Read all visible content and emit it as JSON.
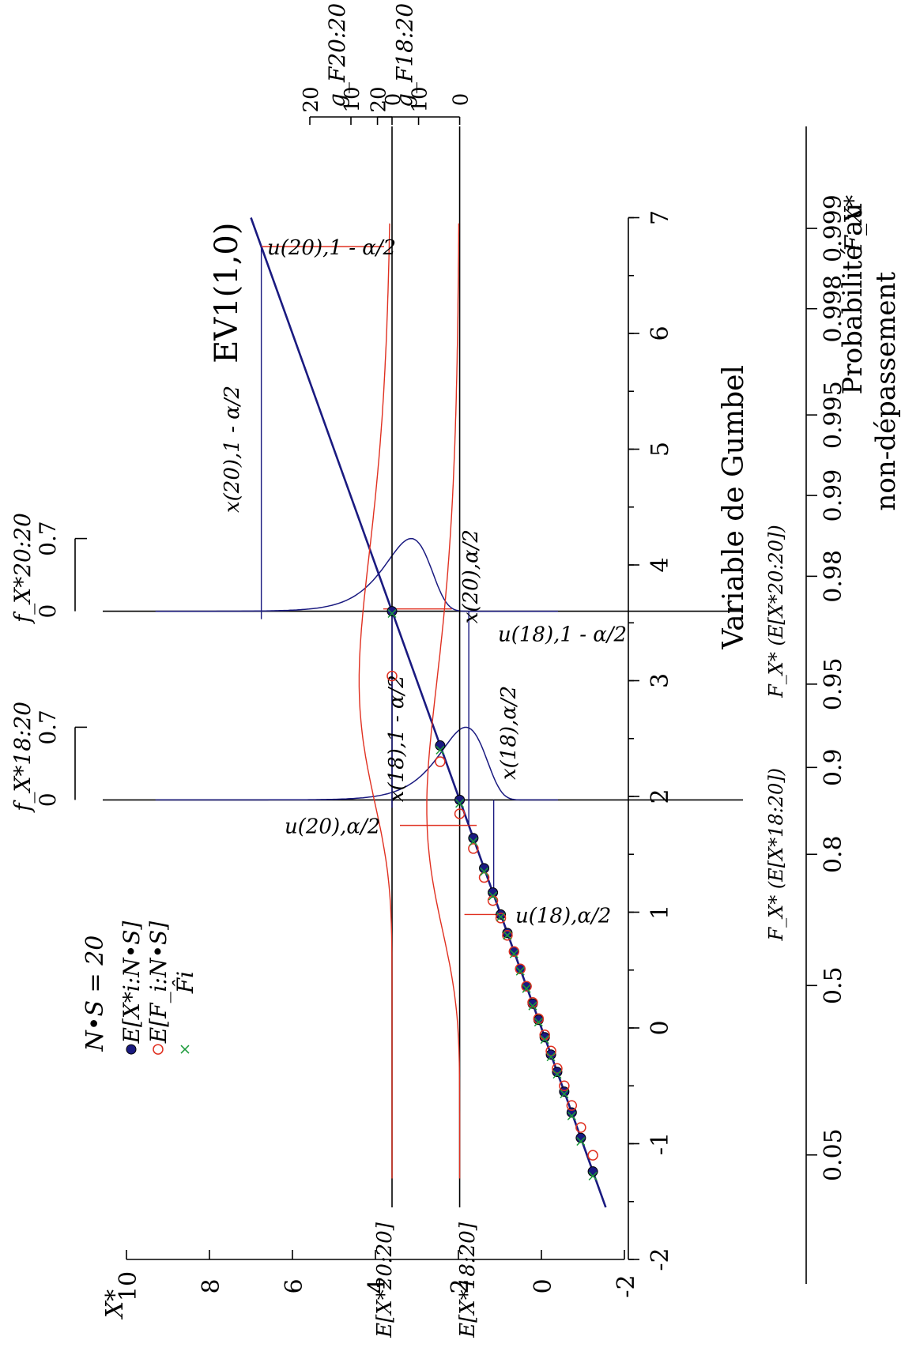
{
  "chart_data": {
    "type": "scatter",
    "title": "EV1(1,0)",
    "xlabel": "Variable de Gumbel",
    "ylabel": "X*",
    "prob_axis_label_line1": "Probabilité au",
    "prob_axis_label_line2": "non-dépassement",
    "prob_axis_symbol": "F_X*",
    "xlim": [
      -2,
      7
    ],
    "ylim": [
      -2,
      10
    ],
    "x_ticks": [
      -2,
      -1,
      0,
      1,
      2,
      3,
      4,
      5,
      6,
      7
    ],
    "x_tick_labels": [
      "-2",
      "-1",
      "0",
      "1",
      "2",
      "3",
      "4",
      "5",
      "6",
      "7"
    ],
    "y_ticks": [
      -2,
      0,
      2,
      4,
      6,
      8,
      10
    ],
    "y_tick_labels": [
      "-2",
      "0",
      "2",
      "4",
      "6",
      "8",
      "10"
    ],
    "prob_ticks": [
      {
        "p": 0.05,
        "label": "0.05"
      },
      {
        "p": 0.5,
        "label": "0.5"
      },
      {
        "p": 0.8,
        "label": "0.8"
      },
      {
        "p": 0.9,
        "label": "0.9"
      },
      {
        "p": 0.95,
        "label": "0.95"
      },
      {
        "p": 0.98,
        "label": "0.98"
      },
      {
        "p": 0.99,
        "label": "0.99"
      },
      {
        "p": 0.995,
        "label": "0.995"
      },
      {
        "p": 0.998,
        "label": "0.998"
      },
      {
        "p": 0.999,
        "label": "0.999"
      }
    ],
    "grid": false,
    "legend_position": "top-left",
    "legend_header": "N•S = 20",
    "fit_line": {
      "name": "EV1(1,0)",
      "x": [
        -1.55,
        7.0
      ],
      "y": [
        -1.55,
        7.0
      ],
      "color": "#1a1a80"
    },
    "series": [
      {
        "name": "E[X*i:N•S]",
        "marker": "filled-circle",
        "color": "#1a1a80",
        "x": [
          -1.24,
          -0.95,
          -0.73,
          -0.55,
          -0.38,
          -0.23,
          -0.08,
          0.07,
          0.21,
          0.36,
          0.51,
          0.66,
          0.82,
          0.98,
          1.17,
          1.38,
          1.64,
          1.97,
          2.44,
          3.6
        ],
        "y": [
          -1.24,
          -0.95,
          -0.73,
          -0.55,
          -0.38,
          -0.23,
          -0.08,
          0.07,
          0.21,
          0.36,
          0.51,
          0.66,
          0.82,
          0.98,
          1.17,
          1.38,
          1.64,
          1.97,
          2.44,
          3.6
        ]
      },
      {
        "name": "E[F_i:N•S]",
        "marker": "open-circle",
        "color": "#e03020",
        "x": [
          -1.1,
          -0.86,
          -0.67,
          -0.5,
          -0.35,
          -0.2,
          -0.06,
          0.08,
          0.22,
          0.36,
          0.51,
          0.66,
          0.8,
          0.95,
          1.1,
          1.3,
          1.55,
          1.85,
          2.3,
          3.04
        ],
        "y": [
          -1.24,
          -0.95,
          -0.73,
          -0.55,
          -0.38,
          -0.23,
          -0.08,
          0.07,
          0.21,
          0.36,
          0.51,
          0.66,
          0.82,
          0.98,
          1.17,
          1.38,
          1.64,
          1.97,
          2.44,
          3.6
        ]
      },
      {
        "name": "F̂i",
        "marker": "x",
        "color": "#1a9a3a",
        "x": [
          -1.28,
          -0.98,
          -0.76,
          -0.57,
          -0.4,
          -0.25,
          -0.1,
          0.05,
          0.19,
          0.34,
          0.49,
          0.64,
          0.8,
          0.96,
          1.14,
          1.35,
          1.61,
          1.94,
          2.4,
          3.58
        ],
        "y": [
          -1.24,
          -0.95,
          -0.73,
          -0.55,
          -0.38,
          -0.23,
          -0.08,
          0.07,
          0.21,
          0.36,
          0.51,
          0.66,
          0.82,
          0.98,
          1.17,
          1.38,
          1.64,
          1.97,
          2.44,
          3.6
        ]
      }
    ],
    "pdf_panels": [
      {
        "label": "f_X*18:20",
        "axis_max_label": "0.7",
        "axis_zero_label": "0",
        "baseline_x": 1.97,
        "mode_y": 1.82,
        "peak_height": 0.7,
        "color": "#1a1a80"
      },
      {
        "label": "f_X*20:20",
        "axis_max_label": "0.7",
        "axis_zero_label": "0",
        "baseline_x": 3.6,
        "mode_y": 3.14,
        "peak_height": 0.7,
        "color": "#1a1a80"
      }
    ],
    "beta_panels": [
      {
        "label": "g_F18:20",
        "ticks": [
          "20",
          "10",
          "0"
        ],
        "baseline_y": 1.97,
        "mode_x": 1.9,
        "lo_x": 0.98,
        "hi_x": 3.62,
        "color": "#e03020"
      },
      {
        "label": "g_F20:20",
        "ticks": [
          "20",
          "10",
          "0"
        ],
        "baseline_y": 3.6,
        "mode_x": 3.0,
        "lo_x": 1.75,
        "hi_x": 6.75,
        "color": "#e03020"
      }
    ],
    "quantile_lines": {
      "u20_hi": 6.75,
      "u20_lo": 1.75,
      "u18_hi": 3.62,
      "u18_lo": 0.98,
      "x20_hi": 6.75,
      "x20_lo": 1.75,
      "x18_hi": 3.6,
      "x18_lo": 1.15
    },
    "annotations": {
      "u20_hi": "u(20),1 - α/2",
      "u20_lo": "u(20),α/2",
      "u18_hi": "u(18),1 - α/2",
      "u18_lo": "u(18),α/2",
      "x20_hi": "x(20),1 - α/2",
      "x20_lo": "x(20),α/2",
      "x18_hi": "x(18),1 - α/2",
      "x18_lo": "x(18),α/2",
      "e20": "E[X*20:20]",
      "e18": "E[X*18:20]",
      "f18_axis": "F_X* (E[X*18:20])",
      "f20_axis": "F_X* (E[X*20:20])"
    }
  }
}
